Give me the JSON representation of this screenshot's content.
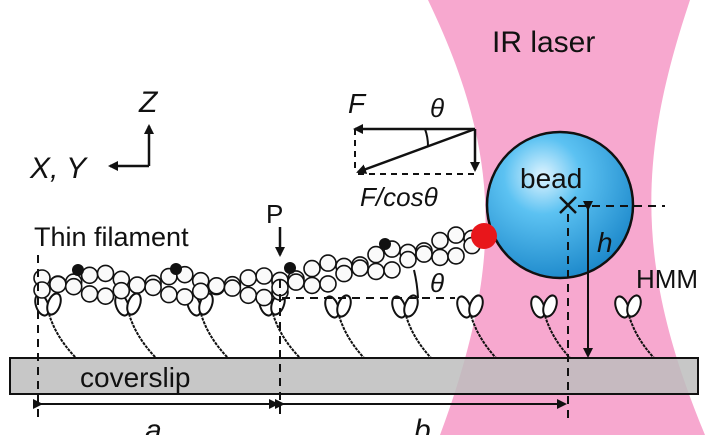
{
  "labels": {
    "laser": "IR laser",
    "bead": "bead",
    "z_axis": "Z",
    "xy_axis": "X, Y",
    "force": "F",
    "theta_top": "θ",
    "force_cos": "F/cosθ",
    "point_p": "P",
    "thin_filament": "Thin filament",
    "height": "h",
    "theta_angle": "θ",
    "hmm": "HMM",
    "coverslip": "coverslip",
    "dist_a": "a",
    "dist_b": "b"
  },
  "colors": {
    "laser": "#f7a8cf",
    "bead": "#2a9fe0",
    "bead_attachment": "#e8161b",
    "coverslip": "#bdbdbd"
  }
}
